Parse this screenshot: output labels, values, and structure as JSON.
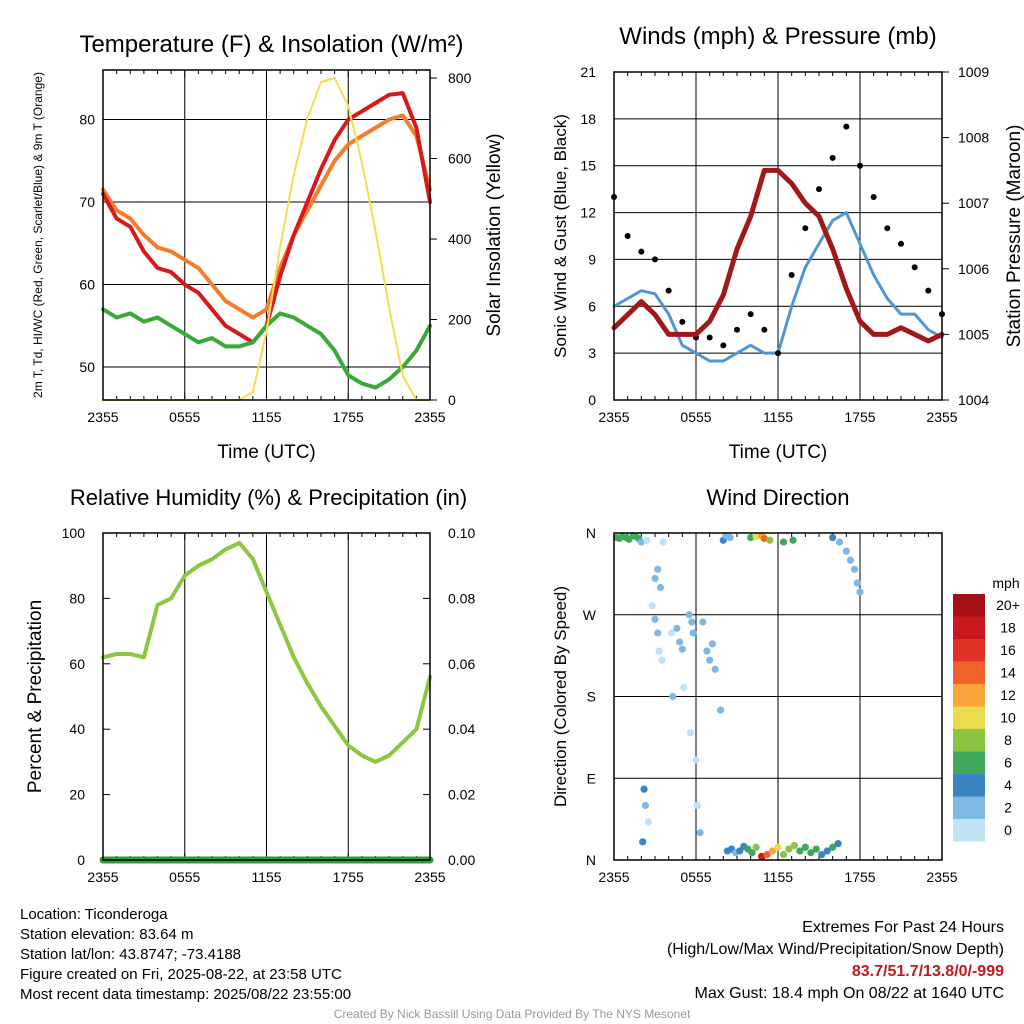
{
  "colors": {
    "temp_2m": "#d7191c",
    "temp_9m": "#f47c2a",
    "dewpoint": "#3aa935",
    "insolation": "#f3dd50",
    "wind_speed": "#4f97d3",
    "gust": "#000000",
    "pressure": "#a01818",
    "humidity": "#8dc63f",
    "precip": "#2e9c3a",
    "grid": "#000000"
  },
  "info": {
    "location": "Location: Ticonderoga",
    "elevation": "Station elevation: 83.64 m",
    "latlon": "Station lat/lon: 43.8747; -73.4188",
    "created": "Figure created on Fri, 2025-08-22, at 23:58 UTC",
    "recent": "Most recent data timestamp: 2025/08/22 23:55:00"
  },
  "extremes": {
    "title": "Extremes For Past 24 Hours",
    "subtitle": "(High/Low/Max Wind/Precipitation/Snow Depth)",
    "values": "83.7/51.7/13.8/0/-999",
    "gust": "Max Gust: 18.4 mph On 08/22 at 1640 UTC"
  },
  "credit": "Created By Nick Bassill Using Data Provided By The NYS Mesonet",
  "chart_data": [
    {
      "type": "line",
      "title": "Temperature (F) & Insolation (W/m²)",
      "xlabel": "Time (UTC)",
      "ylabel_left": "2m T, Td, HI/WC (Red, Green, Scarlet/Blue) & 9m T (Orange)",
      "ylabel_right": "Solar Insolation (Yellow)",
      "x_ticks": [
        "2355",
        "0555",
        "1155",
        "1755",
        "2355"
      ],
      "ylim_left": [
        46,
        86
      ],
      "y_ticks_left": [
        50,
        60,
        70,
        80
      ],
      "ylim_right": [
        0,
        820
      ],
      "y_ticks_right": [
        0,
        200,
        400,
        600,
        800
      ],
      "x_hours": [
        0,
        1,
        2,
        3,
        4,
        5,
        6,
        7,
        8,
        9,
        10,
        11,
        12,
        13,
        14,
        15,
        16,
        17,
        18,
        19,
        20,
        21,
        22,
        23,
        24
      ],
      "series": [
        {
          "name": "9m T",
          "color_key": "temp_9m",
          "axis": "left",
          "values": [
            71.5,
            69,
            68,
            66,
            64.5,
            64,
            63,
            62,
            60,
            58,
            57,
            56,
            57,
            62,
            66,
            69,
            72,
            75,
            77,
            78,
            79,
            80,
            80.5,
            78,
            71.5
          ]
        },
        {
          "name": "2m T",
          "color_key": "temp_2m",
          "axis": "left",
          "values": [
            71,
            68,
            67,
            64,
            62,
            61.5,
            60,
            59,
            57,
            55,
            54,
            53,
            55,
            61,
            66,
            70,
            74,
            77.5,
            80,
            81,
            82,
            83,
            83.2,
            79,
            70
          ]
        },
        {
          "name": "2m Td",
          "color_key": "dewpoint",
          "axis": "left",
          "values": [
            57,
            56,
            56.5,
            55.5,
            56,
            55,
            54,
            53,
            53.5,
            52.5,
            52.5,
            53,
            55,
            56.5,
            56,
            55,
            54,
            52,
            49,
            48,
            47.5,
            48.5,
            50,
            52,
            55
          ]
        },
        {
          "name": "Insolation",
          "color_key": "insolation",
          "axis": "right",
          "values": [
            0,
            0,
            0,
            0,
            0,
            0,
            0,
            0,
            0,
            0,
            0,
            20,
            170,
            380,
            560,
            700,
            790,
            800,
            730,
            590,
            420,
            230,
            60,
            0,
            0
          ]
        }
      ]
    },
    {
      "type": "line",
      "title": "Winds (mph) & Pressure (mb)",
      "xlabel": "Time (UTC)",
      "ylabel_left": "Sonic Wind & Gust (Blue, Black)",
      "ylabel_right": "Station Pressure (Maroon)",
      "x_ticks": [
        "2355",
        "0555",
        "1155",
        "1755",
        "2355"
      ],
      "ylim_left": [
        0,
        21
      ],
      "y_ticks_left": [
        0,
        3,
        6,
        9,
        12,
        15,
        18,
        21
      ],
      "ylim_right": [
        1004,
        1009
      ],
      "y_ticks_right": [
        1004,
        1005,
        1006,
        1007,
        1008,
        1009
      ],
      "x_hours": [
        0,
        1,
        2,
        3,
        4,
        5,
        6,
        7,
        8,
        9,
        10,
        11,
        12,
        13,
        14,
        15,
        16,
        17,
        18,
        19,
        20,
        21,
        22,
        23,
        24
      ],
      "series": [
        {
          "name": "Sonic Wind",
          "color_key": "wind_speed",
          "axis": "left",
          "values": [
            6,
            6.5,
            7,
            6.8,
            5.5,
            3.5,
            3,
            2.5,
            2.5,
            3,
            3.5,
            3,
            3,
            6,
            8.5,
            10,
            11.5,
            12,
            10,
            8,
            6.5,
            5.5,
            5.5,
            4.5,
            4
          ]
        },
        {
          "name": "Gust",
          "color_key": "gust",
          "axis": "left",
          "style": "dots",
          "values": [
            13,
            10.5,
            9.5,
            9,
            7,
            5,
            4,
            4,
            3.5,
            4.5,
            5.5,
            4.5,
            3,
            8,
            11,
            13.5,
            15.5,
            17.5,
            15,
            13,
            11,
            10,
            8.5,
            7,
            5.5
          ]
        },
        {
          "name": "Pressure",
          "color_key": "pressure",
          "axis": "right",
          "values": [
            1005.1,
            1005.3,
            1005.5,
            1005.3,
            1005.0,
            1005.0,
            1005.0,
            1005.2,
            1005.6,
            1006.3,
            1006.8,
            1007.5,
            1007.5,
            1007.3,
            1007.0,
            1006.8,
            1006.3,
            1005.7,
            1005.2,
            1005.0,
            1005.0,
            1005.1,
            1005.0,
            1004.9,
            1005.0
          ]
        }
      ]
    },
    {
      "type": "line",
      "title": "Relative Humidity (%) & Precipitation (in)",
      "xlabel": "",
      "ylabel_left": "Percent & Precipitation",
      "ylabel_right": "",
      "x_ticks": [
        "2355",
        "0555",
        "1155",
        "1755",
        "2355"
      ],
      "ylim_left": [
        0,
        100
      ],
      "y_ticks_left": [
        0,
        20,
        40,
        60,
        80,
        100
      ],
      "ylim_right": [
        0,
        0.1
      ],
      "y_ticks_right": [
        "0.00",
        "0.02",
        "0.04",
        "0.06",
        "0.08",
        "0.10"
      ],
      "x_hours": [
        0,
        1,
        2,
        3,
        4,
        5,
        6,
        7,
        8,
        9,
        10,
        11,
        12,
        13,
        14,
        15,
        16,
        17,
        18,
        19,
        20,
        21,
        22,
        23,
        24
      ],
      "series": [
        {
          "name": "Relative Humidity",
          "color_key": "humidity",
          "axis": "left",
          "values": [
            62,
            63,
            63,
            62,
            78,
            80,
            87,
            90,
            92,
            95,
            97,
            92,
            82,
            72,
            62,
            54,
            47,
            41,
            35,
            32,
            30,
            32,
            36,
            40,
            56
          ]
        },
        {
          "name": "Precipitation",
          "color_key": "precip",
          "axis": "left",
          "values": [
            0,
            0,
            0,
            0,
            0,
            0,
            0,
            0,
            0,
            0,
            0,
            0,
            0,
            0,
            0,
            0,
            0,
            0,
            0,
            0,
            0,
            0,
            0,
            0,
            0
          ]
        }
      ]
    },
    {
      "type": "scatter",
      "title": "Wind Direction",
      "xlabel": "",
      "ylabel": "Direction (Colored By Speed)",
      "x_ticks": [
        "2355",
        "0555",
        "1155",
        "1755",
        "2355"
      ],
      "y_ticks": [
        "N",
        "E",
        "S",
        "W",
        "N"
      ],
      "ylim_degrees": [
        0,
        360
      ],
      "colorbar": {
        "unit": "mph",
        "labels": [
          "20+",
          "18",
          "16",
          "14",
          "12",
          "10",
          "8",
          "6",
          "4",
          "2",
          "0"
        ],
        "colors": [
          "#a50f15",
          "#cb181d",
          "#e03127",
          "#f0622a",
          "#faa43c",
          "#e9dc4f",
          "#8ac440",
          "#40a85c",
          "#3a84c2",
          "#7fb8e2",
          "#bfe3f5"
        ]
      },
      "points": [
        [
          0.2,
          355,
          6
        ],
        [
          0.4,
          354,
          6
        ],
        [
          0.6,
          356,
          7
        ],
        [
          0.9,
          355,
          6
        ],
        [
          1.1,
          353,
          6
        ],
        [
          1.4,
          357,
          6
        ],
        [
          1.6,
          356,
          7
        ],
        [
          1.8,
          354,
          6
        ],
        [
          2.0,
          350,
          2
        ],
        [
          2.4,
          352,
          1
        ],
        [
          2.1,
          20,
          5
        ],
        [
          2.2,
          78,
          5
        ],
        [
          2.3,
          60,
          2
        ],
        [
          2.5,
          42,
          1
        ],
        [
          3.0,
          310,
          2
        ],
        [
          3.2,
          320,
          2
        ],
        [
          3.4,
          300,
          2
        ],
        [
          2.8,
          280,
          1
        ],
        [
          3.0,
          265,
          2
        ],
        [
          3.2,
          250,
          2
        ],
        [
          3.3,
          230,
          1
        ],
        [
          3.5,
          220,
          1
        ],
        [
          3.6,
          350,
          1
        ],
        [
          4.2,
          250,
          1
        ],
        [
          4.3,
          180,
          2
        ],
        [
          4.6,
          255,
          3
        ],
        [
          4.8,
          240,
          2
        ],
        [
          5.0,
          232,
          2
        ],
        [
          5.1,
          190,
          1
        ],
        [
          5.5,
          270,
          3
        ],
        [
          5.7,
          262,
          3
        ],
        [
          5.8,
          250,
          2
        ],
        [
          5.6,
          140,
          1
        ],
        [
          6.0,
          110,
          1
        ],
        [
          6.1,
          60,
          1
        ],
        [
          6.3,
          30,
          2
        ],
        [
          6.8,
          230,
          2
        ],
        [
          7.0,
          220,
          3
        ],
        [
          7.2,
          238,
          2
        ],
        [
          7.4,
          210,
          2
        ],
        [
          7.8,
          165,
          2
        ],
        [
          6.5,
          262,
          2
        ],
        [
          8.0,
          352,
          4
        ],
        [
          8.2,
          357,
          3
        ],
        [
          8.5,
          355,
          2
        ],
        [
          8.3,
          10,
          4
        ],
        [
          8.6,
          12,
          4
        ],
        [
          8.9,
          8,
          3
        ],
        [
          9.2,
          10,
          5
        ],
        [
          9.5,
          15,
          4
        ],
        [
          9.8,
          12,
          6
        ],
        [
          10.1,
          8,
          7
        ],
        [
          10.4,
          14,
          8
        ],
        [
          10.0,
          355,
          6
        ],
        [
          10.4,
          356,
          10
        ],
        [
          10.8,
          357,
          12
        ],
        [
          11.0,
          354,
          14
        ],
        [
          11.4,
          352,
          8
        ],
        [
          12.4,
          350,
          6
        ],
        [
          13.1,
          352,
          6
        ],
        [
          10.8,
          4,
          18
        ],
        [
          11.2,
          6,
          14
        ],
        [
          11.6,
          10,
          12
        ],
        [
          12.0,
          14,
          10
        ],
        [
          12.4,
          6,
          9
        ],
        [
          12.8,
          12,
          8
        ],
        [
          13.2,
          16,
          8
        ],
        [
          13.6,
          10,
          7
        ],
        [
          14.0,
          14,
          7
        ],
        [
          14.4,
          8,
          6
        ],
        [
          14.8,
          12,
          6
        ],
        [
          15.2,
          6,
          5
        ],
        [
          15.6,
          10,
          5
        ],
        [
          16.0,
          14,
          6
        ],
        [
          16.4,
          18,
          5
        ],
        [
          16.0,
          355,
          4
        ],
        [
          16.5,
          350,
          3
        ],
        [
          17.0,
          340,
          2
        ],
        [
          17.3,
          330,
          2
        ],
        [
          17.6,
          320,
          2
        ],
        [
          17.8,
          305,
          3
        ],
        [
          18.0,
          295,
          3
        ]
      ]
    }
  ]
}
